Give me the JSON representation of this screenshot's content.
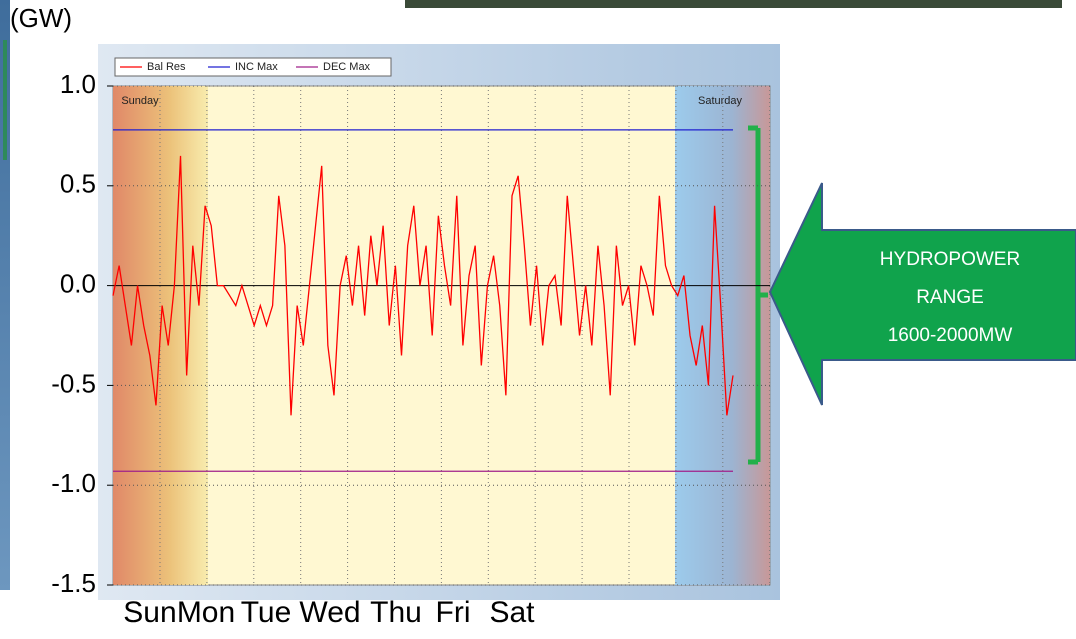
{
  "chart_data": {
    "type": "line",
    "y_label": "(GW)",
    "ylim": [
      -1.5,
      1.0
    ],
    "yticks": [
      {
        "value": 1.0,
        "label": "1.0"
      },
      0.5,
      {
        "value": 0,
        "label": "0.0"
      },
      -0.5,
      {
        "value": -1.0,
        "label": "-1.0"
      },
      -1.5
    ],
    "grid": true,
    "series": [
      {
        "name": "Bal Res",
        "color": "#ff0000",
        "values": [
          -0.05,
          0.1,
          -0.1,
          -0.3,
          0.0,
          -0.2,
          -0.35,
          -0.6,
          -0.1,
          -0.3,
          0.0,
          0.65,
          -0.45,
          0.2,
          -0.1,
          0.4,
          0.3,
          0.0,
          0.0,
          -0.05,
          -0.1,
          0.0,
          -0.1,
          -0.2,
          -0.1,
          -0.2,
          -0.1,
          0.45,
          0.2,
          -0.65,
          -0.1,
          -0.3,
          0.0,
          0.3,
          0.6,
          -0.3,
          -0.55,
          0.0,
          0.15,
          -0.1,
          0.2,
          -0.15,
          0.25,
          0.0,
          0.3,
          -0.2,
          0.1,
          -0.35,
          0.2,
          0.4,
          0.0,
          0.2,
          -0.25,
          0.35,
          0.1,
          -0.1,
          0.45,
          -0.3,
          0.05,
          0.2,
          -0.4,
          0.0,
          0.15,
          -0.1,
          -0.55,
          0.45,
          0.55,
          0.2,
          -0.2,
          0.1,
          -0.3,
          0.0,
          0.05,
          -0.2,
          0.45,
          0.1,
          -0.25,
          0.0,
          -0.3,
          0.2,
          -0.1,
          -0.55,
          0.2,
          -0.1,
          0.0,
          -0.3,
          0.1,
          0.0,
          -0.15,
          0.45,
          0.1,
          0.0,
          -0.05,
          0.05,
          -0.25,
          -0.4,
          -0.2,
          -0.5,
          0.4,
          -0.1,
          -0.65,
          -0.45
        ]
      },
      {
        "name": "INC Max",
        "color": "#2020d0",
        "values": [
          0.78,
          0.78
        ]
      },
      {
        "name": "DEC Max",
        "color": "#a0208a",
        "values": [
          -0.93,
          -0.93
        ]
      }
    ],
    "annotations": [
      "Sunday",
      "Saturday"
    ],
    "x_labels": [
      "Sun",
      "Mon",
      "Tue",
      "Wed",
      "Thu",
      "Fri",
      "Sat"
    ],
    "callout": [
      "HYDROPOWER",
      "RANGE",
      "1600-2000MW"
    ]
  }
}
